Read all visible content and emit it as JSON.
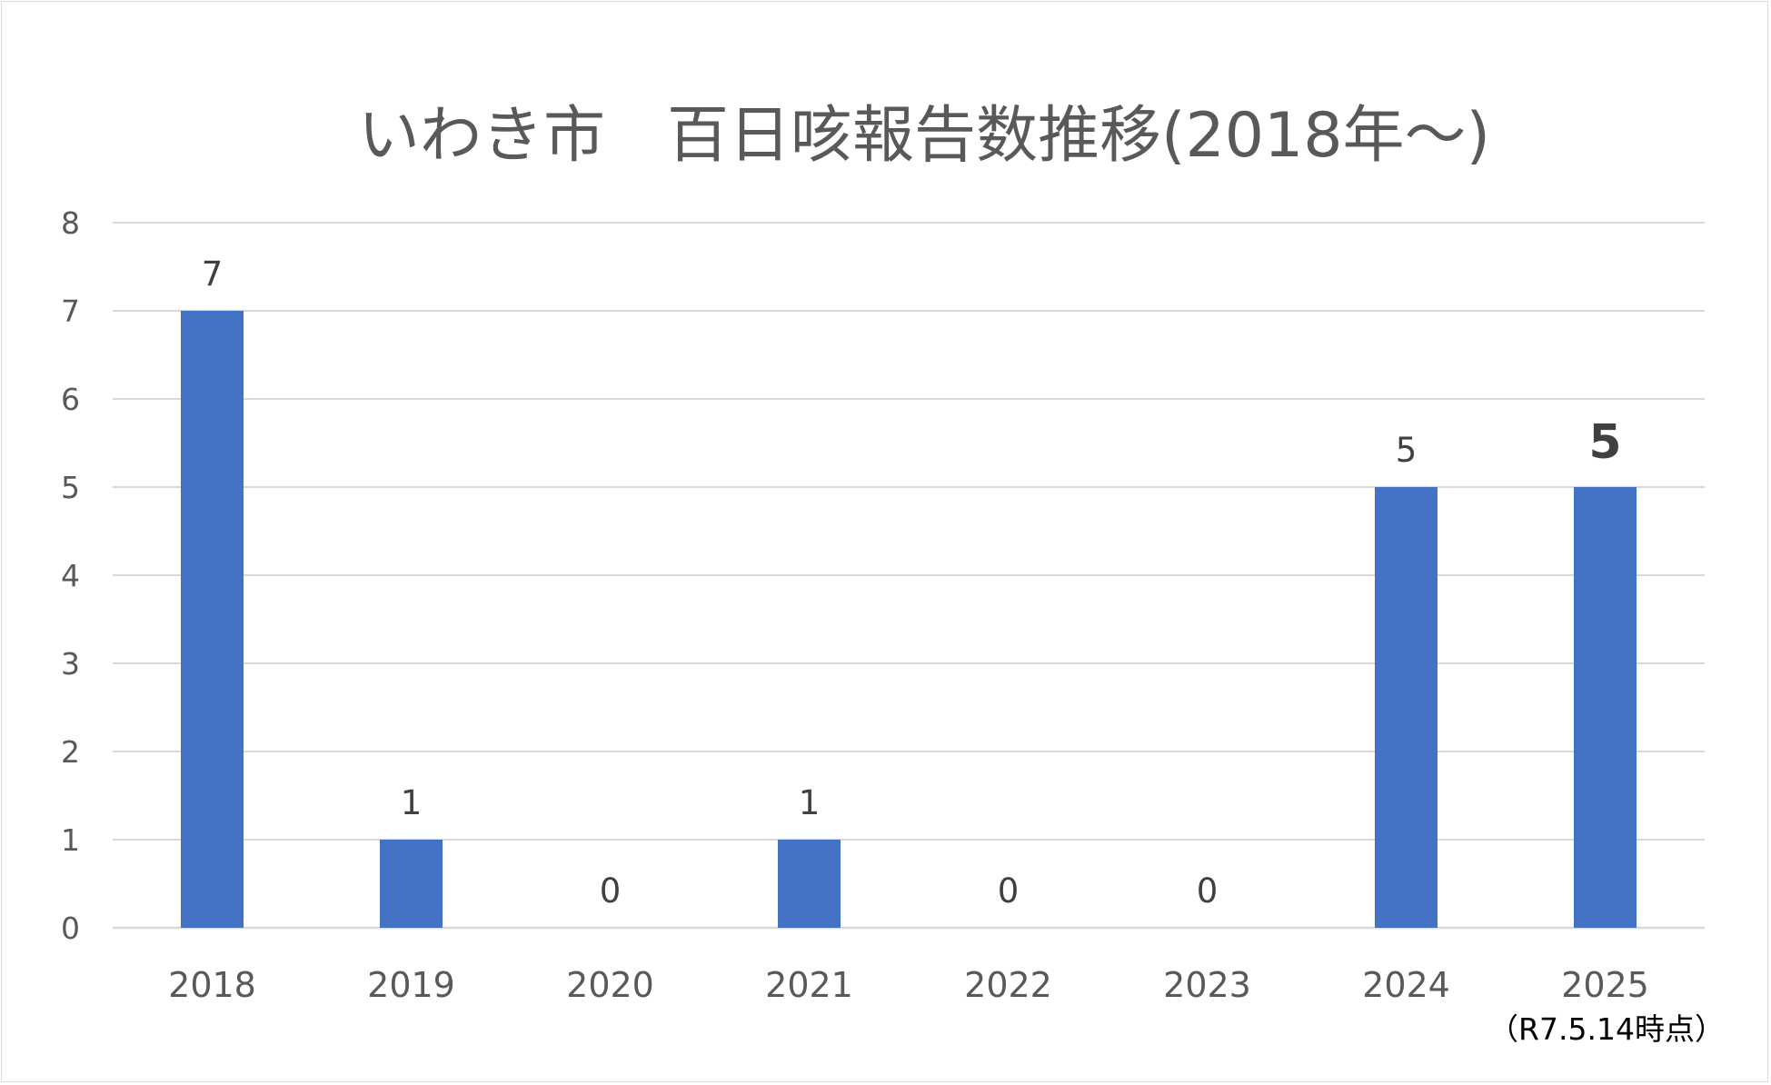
{
  "chart_data": {
    "type": "bar",
    "title": "いわき市　百日咳報告数推移(2018年～)",
    "categories": [
      "2018",
      "2019",
      "2020",
      "2021",
      "2022",
      "2023",
      "2024",
      "2025"
    ],
    "series": [
      {
        "values": [
          7,
          1,
          0,
          1,
          0,
          0,
          5,
          5
        ],
        "color": "#4472c4"
      }
    ],
    "ylim": [
      0,
      8
    ],
    "yticks": [
      "0",
      "1",
      "2",
      "3",
      "4",
      "5",
      "6",
      "7",
      "8"
    ],
    "grid": true,
    "data_labels": true,
    "highlight": {
      "category": "2025",
      "label_color": "#ff0000"
    },
    "note": "（R7.5.14時点）"
  }
}
